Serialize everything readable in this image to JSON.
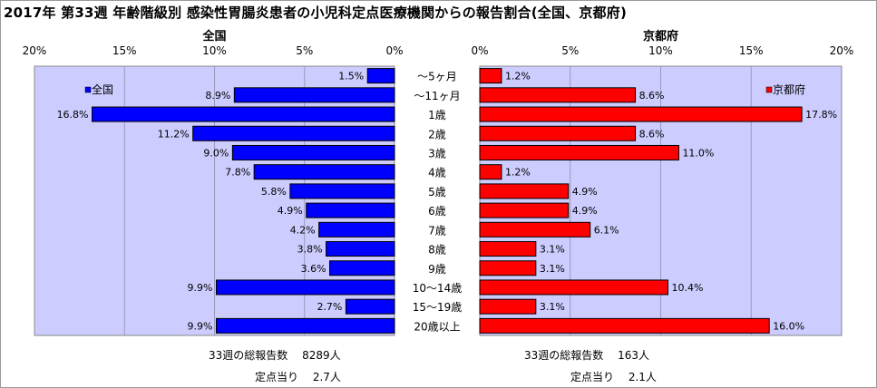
{
  "title": "2017年 第33週 年齢階級別 感染性胃腸炎患者の小児科定点医療機関からの報告割合(全国、京都府)",
  "categories": [
    "～5ヶ月",
    "～11ヶ月",
    "1歳",
    "2歳",
    "3歳",
    "4歳",
    "5歳",
    "6歳",
    "7歳",
    "8歳",
    "9歳",
    "10～14歳",
    "15～19歳",
    "20歳以上"
  ],
  "colors": {
    "national": "#0000ff",
    "kyoto": "#ff0000",
    "plot_bg": "#ccccff"
  },
  "chart_data": [
    {
      "type": "bar",
      "orientation": "horizontal-reversed",
      "title": "全国",
      "categories": [
        "～5ヶ月",
        "～11ヶ月",
        "1歳",
        "2歳",
        "3歳",
        "4歳",
        "5歳",
        "6歳",
        "7歳",
        "8歳",
        "9歳",
        "10～14歳",
        "15～19歳",
        "20歳以上"
      ],
      "series": [
        {
          "name": "全国",
          "values": [
            1.5,
            8.9,
            16.8,
            11.2,
            9.0,
            7.8,
            5.8,
            4.9,
            4.2,
            3.8,
            3.6,
            9.9,
            2.7,
            9.9
          ]
        }
      ],
      "value_labels": [
        "1.5%",
        "8.9%",
        "16.8%",
        "11.2%",
        "9.0%",
        "7.8%",
        "5.8%",
        "4.9%",
        "4.2%",
        "3.8%",
        "3.6%",
        "9.9%",
        "2.7%",
        "9.9%"
      ],
      "xlim": [
        0,
        20
      ],
      "ticks": [
        "0%",
        "5%",
        "10%",
        "15%",
        "20%"
      ],
      "grid": true,
      "legend": "top-left"
    },
    {
      "type": "bar",
      "orientation": "horizontal",
      "title": "京都府",
      "categories": [
        "～5ヶ月",
        "～11ヶ月",
        "1歳",
        "2歳",
        "3歳",
        "4歳",
        "5歳",
        "6歳",
        "7歳",
        "8歳",
        "9歳",
        "10～14歳",
        "15～19歳",
        "20歳以上"
      ],
      "series": [
        {
          "name": "京都府",
          "values": [
            1.2,
            8.6,
            17.8,
            8.6,
            11.0,
            1.2,
            4.9,
            4.9,
            6.1,
            3.1,
            3.1,
            10.4,
            3.1,
            16.0
          ]
        }
      ],
      "value_labels": [
        "1.2%",
        "8.6%",
        "17.8%",
        "8.6%",
        "11.0%",
        "1.2%",
        "4.9%",
        "4.9%",
        "6.1%",
        "3.1%",
        "3.1%",
        "10.4%",
        "3.1%",
        "16.0%"
      ],
      "xlim": [
        0,
        20
      ],
      "ticks": [
        "0%",
        "5%",
        "10%",
        "15%",
        "20%"
      ],
      "grid": true,
      "legend": "top-right"
    }
  ],
  "stats": {
    "national_total": "33週の総報告数　 8289人",
    "national_per_point": "定点当り　 2.7人",
    "kyoto_total": "33週の総報告数　 163人",
    "kyoto_per_point": "定点当り　 2.1人"
  }
}
